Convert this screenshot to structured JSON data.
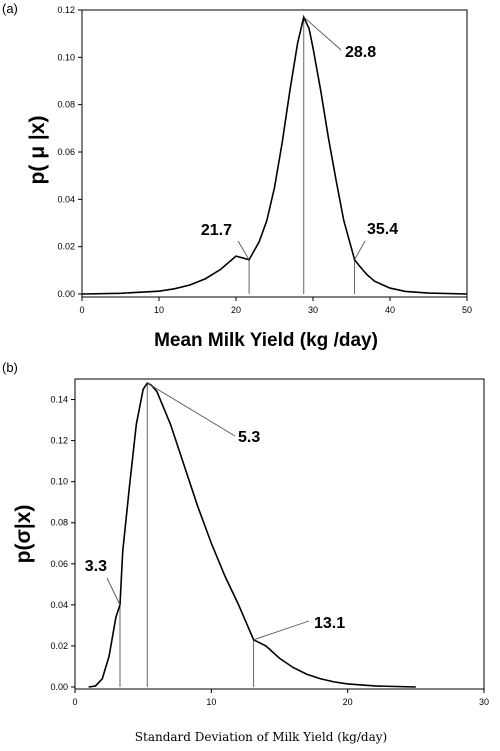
{
  "chart_data": [
    {
      "type": "line",
      "panel_label": "(a)",
      "xlabel": "Mean Milk Yield (kg /day)",
      "ylabel": "p( μ |x)",
      "xlim": [
        0,
        50
      ],
      "ylim": [
        0,
        0.12
      ],
      "xticks": [
        0,
        10,
        20,
        30,
        40,
        50
      ],
      "yticks": [
        0.0,
        0.02,
        0.04,
        0.06,
        0.08,
        0.1,
        0.12
      ],
      "grid": false,
      "series": [
        {
          "x": [
            0,
            5,
            10,
            12,
            14,
            16,
            18,
            20,
            21.7,
            23,
            24,
            25,
            26,
            27,
            28,
            28.8,
            29.5,
            30,
            31,
            32,
            33,
            34,
            35.4,
            36,
            37,
            38,
            40,
            42,
            45,
            50
          ],
          "y": [
            0.0,
            0.0003,
            0.0012,
            0.0022,
            0.0038,
            0.0064,
            0.0104,
            0.016,
            0.0145,
            0.022,
            0.031,
            0.045,
            0.064,
            0.086,
            0.106,
            0.117,
            0.112,
            0.104,
            0.086,
            0.066,
            0.048,
            0.031,
            0.0145,
            0.012,
            0.0082,
            0.0054,
            0.0025,
            0.0011,
            0.0004,
            0.0
          ]
        }
      ],
      "annotations": [
        {
          "x": 21.7,
          "y": 0.0145,
          "text": "21.7"
        },
        {
          "x": 28.8,
          "y": 0.117,
          "text": "28.8"
        },
        {
          "x": 35.4,
          "y": 0.0145,
          "text": "35.4"
        }
      ]
    },
    {
      "type": "line",
      "panel_label": "(b)",
      "xlabel": "Standard Deviation of Milk Yield (kg/day)",
      "ylabel": "p(σ|x)",
      "xlim": [
        0,
        30
      ],
      "ylim": [
        0,
        0.15
      ],
      "xticks": [
        0,
        10,
        20,
        30
      ],
      "yticks": [
        0.0,
        0.02,
        0.04,
        0.06,
        0.08,
        0.1,
        0.12,
        0.14
      ],
      "grid": false,
      "series": [
        {
          "x": [
            1,
            1.5,
            2,
            2.5,
            3,
            3.3,
            3.5,
            4,
            4.5,
            5,
            5.3,
            5.6,
            6,
            7,
            8,
            9,
            10,
            11,
            12,
            13.1,
            14,
            15,
            16,
            17,
            18,
            19,
            20,
            22,
            25
          ],
          "y": [
            0.0,
            0.0005,
            0.004,
            0.015,
            0.034,
            0.04,
            0.066,
            0.098,
            0.128,
            0.145,
            0.148,
            0.147,
            0.144,
            0.128,
            0.108,
            0.088,
            0.07,
            0.054,
            0.04,
            0.023,
            0.02,
            0.014,
            0.0095,
            0.0062,
            0.004,
            0.0025,
            0.0015,
            0.0005,
            0.0
          ]
        }
      ],
      "annotations": [
        {
          "x": 3.3,
          "y": 0.04,
          "text": "3.3"
        },
        {
          "x": 5.3,
          "y": 0.148,
          "text": "5.3"
        },
        {
          "x": 13.1,
          "y": 0.023,
          "text": "13.1"
        }
      ]
    }
  ]
}
